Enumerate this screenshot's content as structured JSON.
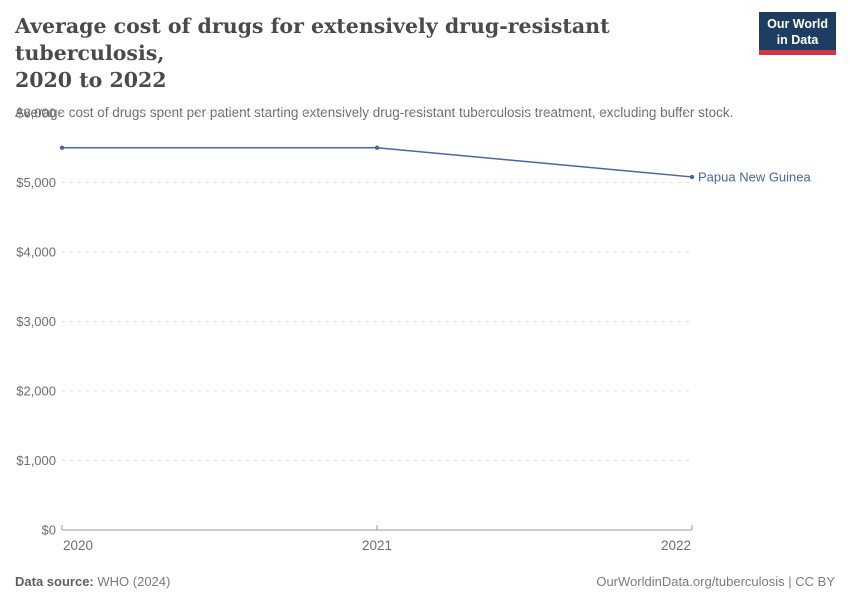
{
  "header": {
    "title_lines": [
      "Average cost of drugs for extensively drug-resistant tuberculosis,",
      "2020 to 2022"
    ],
    "subtitle": "Average cost of drugs spent per patient starting extensively drug-resistant tuberculosis treatment, excluding buffer stock."
  },
  "logo": {
    "line1": "Our World",
    "line2": "in Data",
    "background": "#1d3d63",
    "accent": "#d23642"
  },
  "chart_data": {
    "type": "line",
    "title": "Average cost of drugs for extensively drug-resistant tuberculosis, 2020 to 2022",
    "x": [
      2020,
      2021,
      2022
    ],
    "xtick_labels": [
      "2020",
      "2021",
      "2022"
    ],
    "ylim": [
      0,
      6000
    ],
    "yticks": [
      0,
      1000,
      2000,
      3000,
      4000,
      5000,
      6000
    ],
    "ytick_labels": [
      "$0",
      "$1,000",
      "$2,000",
      "$3,000",
      "$4,000",
      "$5,000",
      "$6,000"
    ],
    "xlabel": "",
    "ylabel": "",
    "grid": "horizontal-dashed",
    "legend_position": "end-of-line-label",
    "series": [
      {
        "name": "Papua New Guinea",
        "color": "#4467A6",
        "values": [
          5500,
          5500,
          5080
        ]
      }
    ]
  },
  "footer": {
    "source_label": "Data source:",
    "source_value": "WHO (2024)",
    "attribution": "OurWorldinData.org/tuberculosis | CC BY"
  }
}
